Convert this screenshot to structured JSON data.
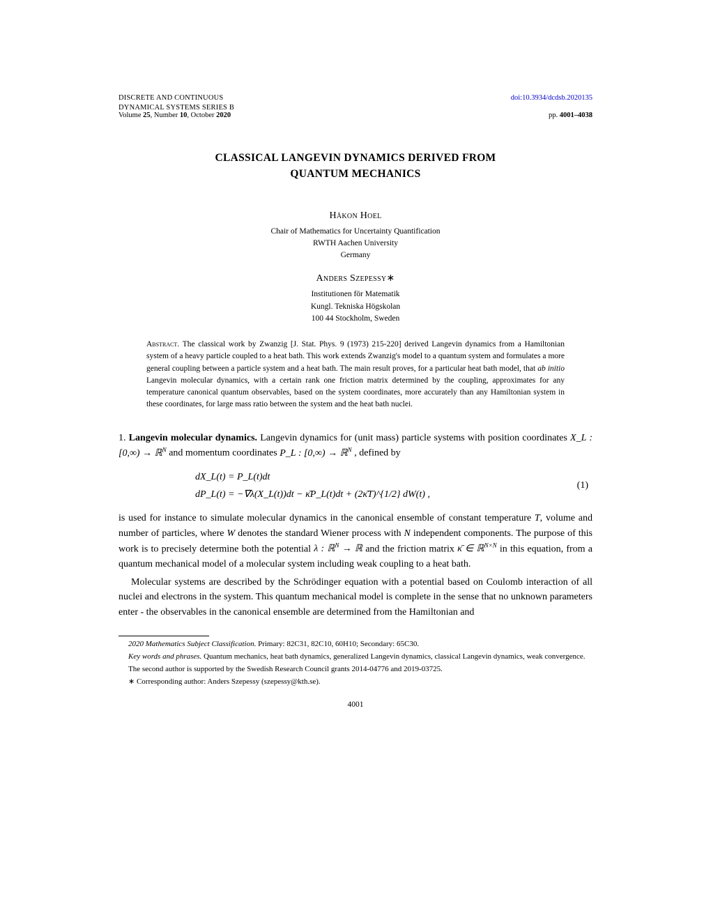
{
  "header": {
    "journal_line1": "DISCRETE AND CONTINUOUS",
    "journal_line2": "DYNAMICAL SYSTEMS SERIES B",
    "volume_bold1": "25",
    "volume_mid": ", Number ",
    "volume_bold2": "10",
    "volume_tail": ", October ",
    "volume_bold3": "2020",
    "doi": "doi:10.3934/dcdsb.2020135",
    "pages_prefix": "pp. ",
    "pages_bold": "4001–4038"
  },
  "title_line1": "CLASSICAL LANGEVIN DYNAMICS DERIVED FROM",
  "title_line2": "QUANTUM MECHANICS",
  "authors": [
    {
      "name": "Håkon Hoel",
      "affil_lines": [
        "Chair of Mathematics for Uncertainty Quantification",
        "RWTH Aachen University",
        "Germany"
      ]
    },
    {
      "name": "Anders Szepessy",
      "starred": "∗",
      "affil_lines": [
        "Institutionen för Matematik",
        "Kungl. Tekniska Högskolan",
        "100 44 Stockholm, Sweden"
      ]
    }
  ],
  "abstract": {
    "label": "Abstract. ",
    "text_before_italic": "The classical work by Zwanzig [J. Stat. Phys. 9 (1973) 215-220] derived Langevin dynamics from a Hamiltonian system of a heavy particle coupled to a heat bath. This work extends Zwanzig's model to a quantum system and formulates a more general coupling between a particle system and a heat bath. The main result proves, for a particular heat bath model, that ",
    "italic_text": "ab initio",
    "text_after_italic": " Langevin molecular dynamics, with a certain rank one friction matrix determined by the coupling, approximates for any temperature canonical quantum observables, based on the system coordinates, more accurately than any Hamiltonian system in these coordinates, for large mass ratio between the system and the heat bath nuclei."
  },
  "section": {
    "num": "1. ",
    "head": "Langevin molecular dynamics.",
    "para1_a": " Langevin dynamics for (unit mass) particle systems with position coordinates ",
    "XL_map": "X_L : [0,∞) → ℝ",
    "N_sup": "N",
    "para1_b": " and momentum coordinates ",
    "PL_map": "P_L : [0,∞) → ℝ",
    "para1_c": " , defined by",
    "eq_line1": "dX_L(t) = P_L(t)dt",
    "eq_line2": "dP_L(t) = −∇λ(X_L(t))dt − κ̄P_L(t)dt + (2κ̄T)^{1/2} dW(t) ,",
    "eq_number": "(1)",
    "para2_a": "is used for instance to simulate molecular dynamics in the canonical ensemble of constant temperature ",
    "T_sym": "T",
    "para2_b": ", volume and number of particles, where ",
    "W_sym": "W",
    "para2_c": " denotes the standard Wiener process with ",
    "N_sym": "N",
    "para2_d": " independent components. The purpose of this work is to precisely determine both the potential ",
    "lambda_map": "λ : ℝ",
    "to_R": " → ℝ",
    "para2_e": " and the friction matrix ",
    "kappa_in": "κ̄ ∈ ℝ",
    "NxN_sup": "N×N",
    "para2_f": " in this equation, from a quantum mechanical model of a molecular system including weak coupling to a heat bath.",
    "para3": "Molecular systems are described by the Schrödinger equation with a potential based on Coulomb interaction of all nuclei and electrons in the system. This quantum mechanical model is complete in the sense that no unknown parameters enter - the observables in the canonical ensemble are determined from the Hamiltonian and"
  },
  "footnotes": {
    "msc_label": "2020 Mathematics Subject Classification. ",
    "msc_text": "Primary: 82C31, 82C10, 60H10; Secondary: 65C30.",
    "kw_label": "Key words and phrases. ",
    "kw_text": "Quantum mechanics, heat bath dynamics, generalized Langevin dynamics, classical Langevin dynamics, weak convergence.",
    "funding": "The second author is supported by the Swedish Research Council grants 2014-04776 and 2019-03725.",
    "corresponding_star": "∗ ",
    "corresponding": "Corresponding author: Anders Szepessy (szepessy@kth.se)."
  },
  "page_number": "4001",
  "colors": {
    "link": "#0000cc",
    "text": "#000000",
    "bg": "#ffffff"
  }
}
